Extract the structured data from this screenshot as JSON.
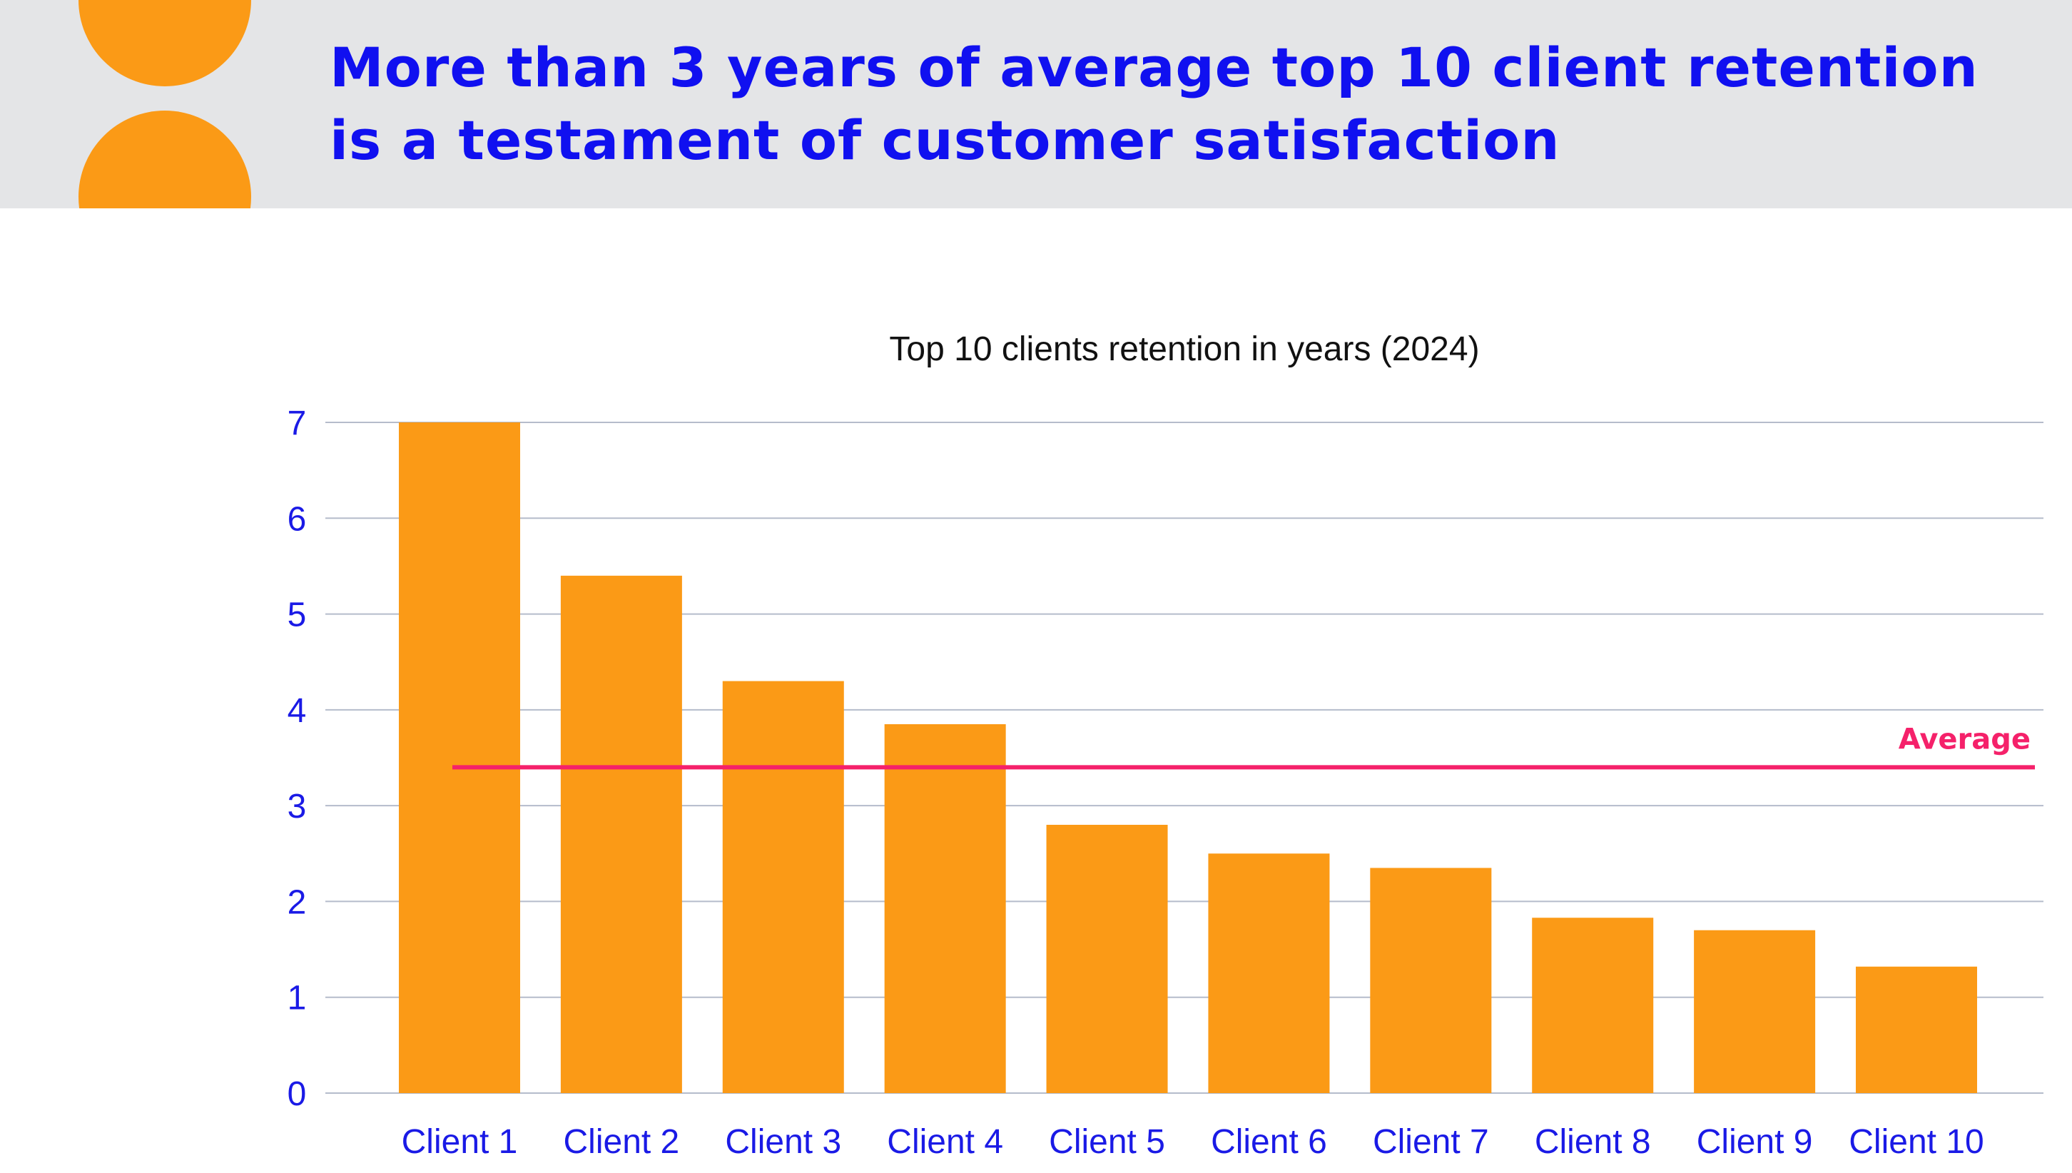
{
  "header": {
    "title": "More than 3 years of average top 10 client retention is a testament of customer satisfaction"
  },
  "colors": {
    "header_bg": "#e4e5e7",
    "accent_orange": "#fb9a16",
    "title_blue": "#1010f0",
    "average_line": "#f5216a",
    "gridline": "#b5bccb"
  },
  "chart_data": {
    "type": "bar",
    "title": "Top 10 clients retention in years (2024)",
    "xlabel": "",
    "ylabel": "",
    "ylim": [
      0,
      7
    ],
    "yticks": [
      0,
      1,
      2,
      3,
      4,
      5,
      6,
      7
    ],
    "grid": true,
    "categories": [
      "Client 1",
      "Client 2",
      "Client 3",
      "Client 4",
      "Client 5",
      "Client 6",
      "Client 7",
      "Client 8",
      "Client 9",
      "Client 10"
    ],
    "values": [
      7.0,
      5.4,
      4.3,
      3.85,
      2.8,
      2.5,
      2.35,
      1.83,
      1.7,
      1.32
    ],
    "reference_line": {
      "label": "Average",
      "value": 3.4
    }
  }
}
